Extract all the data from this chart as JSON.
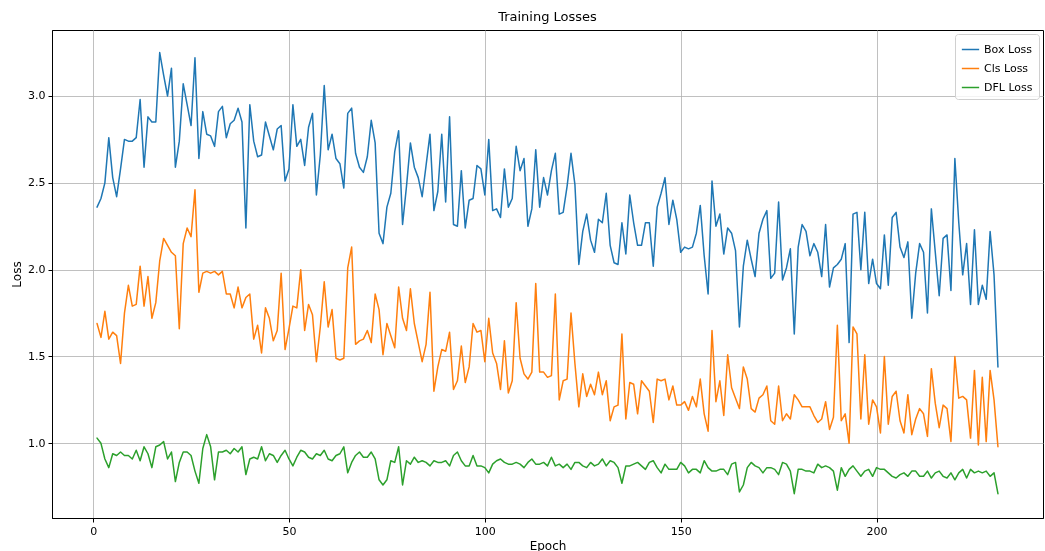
{
  "chart_data": {
    "type": "line",
    "title": "Training Losses",
    "xlabel": "Epoch",
    "ylabel": "Loss",
    "x": [
      1,
      2,
      3,
      4,
      5,
      6,
      7,
      8,
      9,
      10,
      11,
      12,
      13,
      14,
      15,
      16,
      17,
      18,
      19,
      20,
      21,
      22,
      23,
      24,
      25,
      26,
      27,
      28,
      29,
      30,
      31,
      32,
      33,
      34,
      35,
      36,
      37,
      38,
      39,
      40,
      41,
      42,
      43,
      44,
      45,
      46,
      47,
      48,
      49,
      50,
      51,
      52,
      53,
      54,
      55,
      56,
      57,
      58,
      59,
      60,
      61,
      62,
      63,
      64,
      65,
      66,
      67,
      68,
      69,
      70,
      71,
      72,
      73,
      74,
      75,
      76,
      77,
      78,
      79,
      80,
      81,
      82,
      83,
      84,
      85,
      86,
      87,
      88,
      89,
      90,
      91,
      92,
      93,
      94,
      95,
      96,
      97,
      98,
      99,
      100,
      101,
      102,
      103,
      104,
      105,
      106,
      107,
      108,
      109,
      110,
      111,
      112,
      113,
      114,
      115,
      116,
      117,
      118,
      119,
      120,
      121,
      122,
      123,
      124,
      125,
      126,
      127,
      128,
      129,
      130,
      131,
      132,
      133,
      134,
      135,
      136,
      137,
      138,
      139,
      140,
      141,
      142,
      143,
      144,
      145,
      146,
      147,
      148,
      149,
      150,
      151,
      152,
      153,
      154,
      155,
      156,
      157,
      158,
      159,
      160,
      161,
      162,
      163,
      164,
      165,
      166,
      167,
      168,
      169,
      170,
      171,
      172,
      173,
      174,
      175,
      176,
      177,
      178,
      179,
      180,
      181,
      182,
      183,
      184,
      185,
      186,
      187,
      188,
      189,
      190,
      191,
      192,
      193,
      194,
      195,
      196,
      197,
      198,
      199,
      200,
      201,
      202,
      203,
      204,
      205,
      206,
      207,
      208,
      209,
      210,
      211,
      212,
      213,
      214,
      215,
      216,
      217,
      218,
      219,
      220,
      221,
      222,
      223,
      224,
      225,
      226,
      227,
      228,
      229,
      230,
      231
    ],
    "series": [
      {
        "name": "Box Loss",
        "color": "#1f77b4",
        "values": [
          2.36,
          2.41,
          2.5,
          2.76,
          2.53,
          2.42,
          2.58,
          2.75,
          2.74,
          2.74,
          2.76,
          2.98,
          2.59,
          2.88,
          2.85,
          2.85,
          3.25,
          3.12,
          3.0,
          3.16,
          2.59,
          2.74,
          3.07,
          2.95,
          2.83,
          3.22,
          2.64,
          2.91,
          2.78,
          2.77,
          2.71,
          2.91,
          2.94,
          2.76,
          2.84,
          2.86,
          2.93,
          2.85,
          2.24,
          2.95,
          2.74,
          2.65,
          2.66,
          2.85,
          2.77,
          2.69,
          2.81,
          2.83,
          2.51,
          2.58,
          2.95,
          2.71,
          2.75,
          2.6,
          2.82,
          2.9,
          2.43,
          2.66,
          3.06,
          2.69,
          2.78,
          2.64,
          2.61,
          2.47,
          2.9,
          2.93,
          2.67,
          2.59,
          2.56,
          2.65,
          2.86,
          2.73,
          2.21,
          2.15,
          2.36,
          2.44,
          2.68,
          2.8,
          2.26,
          2.48,
          2.73,
          2.59,
          2.53,
          2.42,
          2.6,
          2.78,
          2.34,
          2.45,
          2.78,
          2.39,
          2.88,
          2.26,
          2.25,
          2.57,
          2.24,
          2.4,
          2.41,
          2.6,
          2.58,
          2.43,
          2.75,
          2.34,
          2.35,
          2.3,
          2.58,
          2.36,
          2.41,
          2.71,
          2.57,
          2.64,
          2.25,
          2.35,
          2.69,
          2.36,
          2.53,
          2.43,
          2.57,
          2.67,
          2.32,
          2.33,
          2.48,
          2.67,
          2.49,
          2.03,
          2.22,
          2.32,
          2.17,
          2.1,
          2.29,
          2.27,
          2.44,
          2.14,
          2.04,
          2.03,
          2.27,
          2.09,
          2.43,
          2.27,
          2.14,
          2.14,
          2.27,
          2.27,
          2.02,
          2.36,
          2.44,
          2.53,
          2.26,
          2.4,
          2.29,
          2.1,
          2.13,
          2.12,
          2.13,
          2.21,
          2.37,
          2.08,
          1.86,
          2.51,
          2.25,
          2.32,
          2.09,
          2.24,
          2.21,
          2.11,
          1.67,
          2.02,
          2.17,
          2.06,
          1.96,
          2.21,
          2.29,
          2.34,
          1.95,
          1.98,
          2.39,
          1.94,
          2.01,
          2.12,
          1.63,
          2.13,
          2.26,
          2.22,
          2.08,
          2.15,
          2.1,
          1.96,
          2.26,
          1.9,
          2.01,
          2.03,
          2.06,
          2.15,
          1.58,
          2.32,
          2.33,
          2.0,
          2.33,
          1.92,
          2.06,
          1.92,
          1.89,
          2.2,
          1.91,
          2.3,
          2.33,
          2.13,
          2.07,
          2.16,
          1.72,
          1.98,
          2.15,
          2.1,
          1.75,
          2.35,
          2.1,
          1.85,
          2.18,
          2.2,
          1.88,
          2.64,
          2.27,
          1.97,
          2.15,
          1.8,
          2.23,
          1.8,
          1.91,
          1.83,
          2.22,
          1.97,
          1.44
        ]
      },
      {
        "name": "Cls Loss",
        "color": "#ff7f0e",
        "values": [
          1.69,
          1.61,
          1.76,
          1.6,
          1.64,
          1.62,
          1.46,
          1.75,
          1.91,
          1.79,
          1.8,
          2.02,
          1.79,
          1.96,
          1.72,
          1.81,
          2.05,
          2.18,
          2.14,
          2.1,
          2.08,
          1.66,
          2.15,
          2.24,
          2.19,
          2.46,
          1.87,
          1.98,
          1.99,
          1.98,
          1.99,
          1.97,
          1.99,
          1.86,
          1.86,
          1.78,
          1.9,
          1.78,
          1.84,
          1.86,
          1.6,
          1.68,
          1.52,
          1.78,
          1.72,
          1.59,
          1.65,
          1.98,
          1.54,
          1.66,
          1.79,
          1.78,
          2.0,
          1.65,
          1.8,
          1.74,
          1.47,
          1.67,
          1.93,
          1.67,
          1.77,
          1.49,
          1.48,
          1.49,
          2.01,
          2.13,
          1.57,
          1.59,
          1.6,
          1.65,
          1.58,
          1.86,
          1.77,
          1.51,
          1.69,
          1.62,
          1.55,
          1.9,
          1.72,
          1.65,
          1.89,
          1.69,
          1.58,
          1.47,
          1.57,
          1.87,
          1.3,
          1.44,
          1.54,
          1.53,
          1.64,
          1.31,
          1.36,
          1.56,
          1.35,
          1.44,
          1.69,
          1.64,
          1.65,
          1.47,
          1.72,
          1.52,
          1.46,
          1.31,
          1.59,
          1.29,
          1.36,
          1.81,
          1.49,
          1.4,
          1.37,
          1.41,
          1.92,
          1.41,
          1.41,
          1.38,
          1.39,
          1.86,
          1.25,
          1.36,
          1.37,
          1.75,
          1.46,
          1.21,
          1.4,
          1.27,
          1.34,
          1.28,
          1.41,
          1.28,
          1.36,
          1.13,
          1.21,
          1.22,
          1.63,
          1.14,
          1.35,
          1.34,
          1.17,
          1.36,
          1.33,
          1.3,
          1.12,
          1.37,
          1.36,
          1.37,
          1.25,
          1.33,
          1.22,
          1.22,
          1.24,
          1.19,
          1.27,
          1.21,
          1.37,
          1.17,
          1.07,
          1.65,
          1.24,
          1.36,
          1.16,
          1.51,
          1.32,
          1.26,
          1.2,
          1.44,
          1.37,
          1.2,
          1.18,
          1.26,
          1.28,
          1.33,
          1.13,
          1.11,
          1.33,
          1.13,
          1.17,
          1.14,
          1.28,
          1.25,
          1.21,
          1.21,
          1.21,
          1.16,
          1.12,
          1.14,
          1.24,
          1.08,
          1.15,
          1.68,
          1.13,
          1.17,
          1.0,
          1.67,
          1.63,
          1.14,
          1.51,
          1.11,
          1.25,
          1.21,
          1.06,
          1.5,
          1.11,
          1.27,
          1.3,
          1.13,
          1.06,
          1.28,
          1.05,
          1.14,
          1.2,
          1.17,
          1.04,
          1.43,
          1.23,
          1.09,
          1.22,
          1.2,
          1.01,
          1.5,
          1.26,
          1.27,
          1.25,
          1.03,
          1.42,
          0.99,
          1.38,
          1.01,
          1.42,
          1.25,
          0.98
        ]
      },
      {
        "name": "DFL Loss",
        "color": "#2ca02c",
        "values": [
          1.03,
          1.0,
          0.91,
          0.86,
          0.94,
          0.93,
          0.95,
          0.93,
          0.93,
          0.91,
          0.96,
          0.9,
          0.98,
          0.94,
          0.86,
          0.98,
          0.99,
          1.01,
          0.91,
          0.95,
          0.78,
          0.89,
          0.95,
          0.95,
          0.93,
          0.84,
          0.77,
          0.97,
          1.05,
          0.98,
          0.79,
          0.95,
          0.95,
          0.96,
          0.94,
          0.97,
          0.95,
          0.98,
          0.82,
          0.91,
          0.92,
          0.91,
          0.98,
          0.9,
          0.94,
          0.93,
          0.89,
          0.93,
          0.96,
          0.91,
          0.87,
          0.92,
          0.96,
          0.95,
          0.92,
          0.91,
          0.94,
          0.93,
          0.96,
          0.91,
          0.9,
          0.93,
          0.94,
          0.98,
          0.83,
          0.89,
          0.93,
          0.95,
          0.92,
          0.92,
          0.95,
          0.91,
          0.79,
          0.76,
          0.79,
          0.9,
          0.89,
          0.98,
          0.76,
          0.9,
          0.88,
          0.92,
          0.89,
          0.9,
          0.89,
          0.87,
          0.9,
          0.89,
          0.89,
          0.9,
          0.87,
          0.93,
          0.95,
          0.9,
          0.87,
          0.87,
          0.93,
          0.87,
          0.87,
          0.86,
          0.83,
          0.88,
          0.9,
          0.91,
          0.89,
          0.88,
          0.88,
          0.89,
          0.88,
          0.86,
          0.89,
          0.91,
          0.88,
          0.88,
          0.89,
          0.87,
          0.92,
          0.87,
          0.88,
          0.86,
          0.88,
          0.85,
          0.89,
          0.89,
          0.87,
          0.86,
          0.89,
          0.87,
          0.88,
          0.91,
          0.87,
          0.9,
          0.89,
          0.86,
          0.77,
          0.87,
          0.87,
          0.88,
          0.89,
          0.87,
          0.85,
          0.89,
          0.9,
          0.86,
          0.83,
          0.88,
          0.85,
          0.85,
          0.85,
          0.89,
          0.87,
          0.83,
          0.85,
          0.85,
          0.83,
          0.9,
          0.86,
          0.84,
          0.84,
          0.85,
          0.85,
          0.82,
          0.88,
          0.89,
          0.72,
          0.76,
          0.86,
          0.89,
          0.87,
          0.86,
          0.83,
          0.86,
          0.86,
          0.85,
          0.82,
          0.89,
          0.88,
          0.84,
          0.71,
          0.85,
          0.85,
          0.84,
          0.84,
          0.83,
          0.88,
          0.86,
          0.87,
          0.86,
          0.84,
          0.73,
          0.86,
          0.81,
          0.85,
          0.87,
          0.84,
          0.81,
          0.84,
          0.85,
          0.81,
          0.86,
          0.85,
          0.85,
          0.83,
          0.81,
          0.8,
          0.82,
          0.83,
          0.81,
          0.84,
          0.84,
          0.81,
          0.81,
          0.84,
          0.8,
          0.83,
          0.84,
          0.81,
          0.8,
          0.83,
          0.79,
          0.83,
          0.85,
          0.8,
          0.85,
          0.83,
          0.84,
          0.83,
          0.84,
          0.81,
          0.83,
          0.71
        ]
      }
    ],
    "xlim": [
      -10.5,
      242.5
    ],
    "xticks": [
      0,
      50,
      100,
      150,
      200
    ],
    "ylim": [
      0.57,
      3.38
    ],
    "yticks": [
      {
        "value": 1,
        "label": "1.0"
      },
      {
        "value": 1.5,
        "label": "1.5"
      },
      {
        "value": 2,
        "label": "2.0"
      },
      {
        "value": 2.5,
        "label": "2.5"
      },
      {
        "value": 3,
        "label": "3.0"
      }
    ],
    "grid": true,
    "legend": "top right"
  }
}
